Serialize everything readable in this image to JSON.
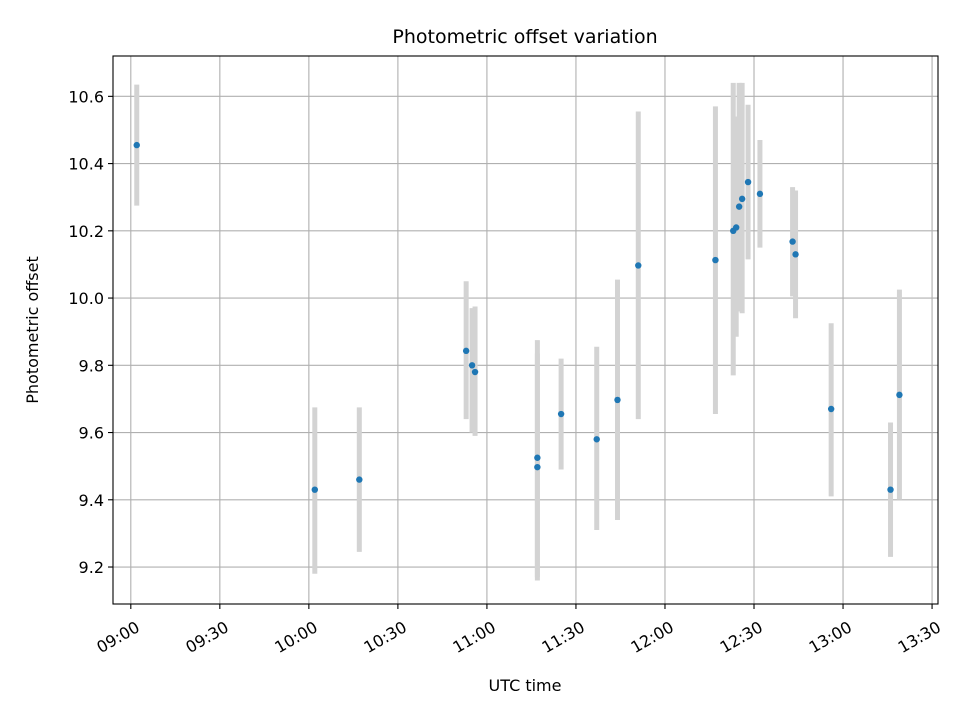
{
  "chart_data": {
    "type": "scatter",
    "title": "Photometric offset variation",
    "xlabel": "UTC time",
    "ylabel": "Photometric offset",
    "grid": true,
    "legend": "none",
    "xlim": [
      "08:54",
      "13:32"
    ],
    "ylim": [
      9.09,
      10.72
    ],
    "x_ticks": [
      "09:00",
      "09:30",
      "10:00",
      "10:30",
      "11:00",
      "11:30",
      "12:00",
      "12:30",
      "13:00",
      "13:30"
    ],
    "y_ticks": [
      "9.2",
      "9.4",
      "9.6",
      "9.8",
      "10.0",
      "10.2",
      "10.4",
      "10.6"
    ],
    "colors": {
      "points": "#1f77b4",
      "error_bars": "#d3d3d3",
      "grid": "#b0b0b0"
    },
    "points": [
      {
        "x": "09:02",
        "y": 10.455,
        "ylow": 10.275,
        "yhigh": 10.635
      },
      {
        "x": "10:02",
        "y": 9.43,
        "ylow": 9.18,
        "yhigh": 9.675
      },
      {
        "x": "10:17",
        "y": 9.46,
        "ylow": 9.245,
        "yhigh": 9.675
      },
      {
        "x": "10:53",
        "y": 9.843,
        "ylow": 9.64,
        "yhigh": 10.05
      },
      {
        "x": "10:55",
        "y": 9.8,
        "ylow": 9.6,
        "yhigh": 9.97
      },
      {
        "x": "10:56",
        "y": 9.78,
        "ylow": 9.59,
        "yhigh": 9.975
      },
      {
        "x": "11:17",
        "y": 9.525,
        "ylow": 9.17,
        "yhigh": 9.875
      },
      {
        "x": "11:17",
        "y": 9.497,
        "ylow": 9.16,
        "yhigh": 9.835
      },
      {
        "x": "11:25",
        "y": 9.655,
        "ylow": 9.49,
        "yhigh": 9.82
      },
      {
        "x": "11:37",
        "y": 9.58,
        "ylow": 9.31,
        "yhigh": 9.855
      },
      {
        "x": "11:44",
        "y": 9.697,
        "ylow": 9.34,
        "yhigh": 10.055
      },
      {
        "x": "11:51",
        "y": 10.097,
        "ylow": 9.64,
        "yhigh": 10.555
      },
      {
        "x": "12:17",
        "y": 10.113,
        "ylow": 9.655,
        "yhigh": 10.57
      },
      {
        "x": "12:23",
        "y": 10.2,
        "ylow": 9.77,
        "yhigh": 10.64
      },
      {
        "x": "12:24",
        "y": 10.21,
        "ylow": 9.885,
        "yhigh": 10.54
      },
      {
        "x": "12:25",
        "y": 10.272,
        "ylow": 9.96,
        "yhigh": 10.64
      },
      {
        "x": "12:26",
        "y": 10.295,
        "ylow": 9.955,
        "yhigh": 10.64
      },
      {
        "x": "12:28",
        "y": 10.345,
        "ylow": 10.115,
        "yhigh": 10.575
      },
      {
        "x": "12:32",
        "y": 10.31,
        "ylow": 10.15,
        "yhigh": 10.47
      },
      {
        "x": "12:43",
        "y": 10.168,
        "ylow": 10.005,
        "yhigh": 10.33
      },
      {
        "x": "12:44",
        "y": 10.13,
        "ylow": 9.94,
        "yhigh": 10.32
      },
      {
        "x": "12:56",
        "y": 9.67,
        "ylow": 9.41,
        "yhigh": 9.925
      },
      {
        "x": "13:16",
        "y": 9.43,
        "ylow": 9.23,
        "yhigh": 9.63
      },
      {
        "x": "13:19",
        "y": 9.712,
        "ylow": 9.4,
        "yhigh": 10.025
      }
    ]
  }
}
